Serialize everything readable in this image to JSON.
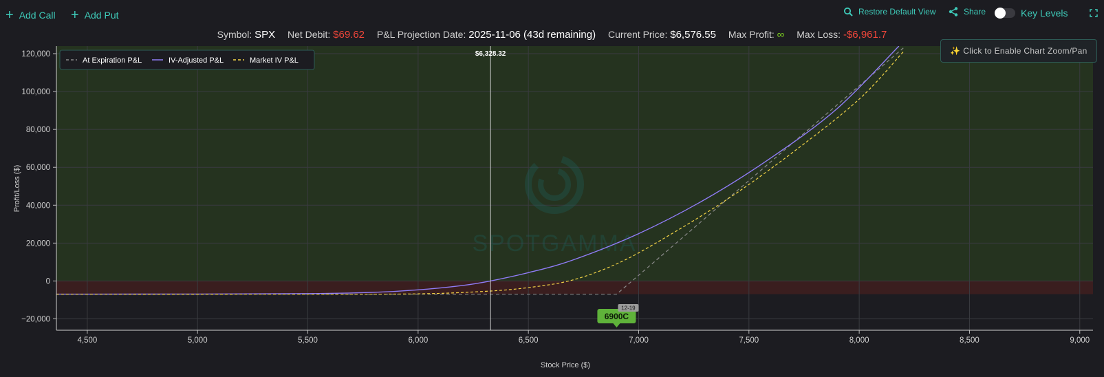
{
  "toolbar": {
    "add_call": "Add Call",
    "add_put": "Add Put",
    "restore": "Restore Default View",
    "share": "Share",
    "key_levels": "Key Levels"
  },
  "summary": {
    "symbol_label": "Symbol:",
    "symbol": "SPX",
    "net_debit_label": "Net Debit:",
    "net_debit": "$69.62",
    "proj_date_label": "P&L Projection Date:",
    "proj_date": "2025-11-06 (43d remaining)",
    "price_label": "Current Price:",
    "price": "$6,576.55",
    "max_profit_label": "Max Profit:",
    "max_profit": "∞",
    "max_loss_label": "Max Loss:",
    "max_loss": "-$6,961.7"
  },
  "zoom_hint": "✨ Click to Enable Chart Zoom/Pan",
  "watermark": "SPOTGAMMA",
  "colors": {
    "accent": "#3ec9b8",
    "profit_fill": "#25331f",
    "loss_fill": "#3a1e1f",
    "expiration": "#8a8a8a",
    "iv_adjusted": "#8f7cf6",
    "market_iv": "#f5d547",
    "strike_marker": "#5fb23a"
  },
  "chart_data": {
    "type": "line",
    "xlabel": "Stock Price ($)",
    "ylabel": "Profit/Loss ($)",
    "xlim": [
      4360,
      9060
    ],
    "ylim": [
      -26000,
      124000
    ],
    "xticks": [
      4500,
      5000,
      5500,
      6000,
      6500,
      7000,
      7500,
      8000,
      8500,
      9000
    ],
    "xtick_labels": [
      "4,500",
      "5,000",
      "5,500",
      "6,000",
      "6,500",
      "7,000",
      "7,500",
      "8,000",
      "8,500",
      "9,000"
    ],
    "yticks": [
      -20000,
      0,
      20000,
      40000,
      60000,
      80000,
      100000,
      120000
    ],
    "ytick_labels": [
      "−20,000",
      "0",
      "20,000",
      "40,000",
      "60,000",
      "80,000",
      "100,000",
      "120,000"
    ],
    "grid": true,
    "legend_position": "top-left",
    "breakeven": {
      "x": 6328.32,
      "label": "$6,328.32"
    },
    "strike_marker": {
      "x": 6900,
      "label": "6900C",
      "expiry": "12-19"
    },
    "series": [
      {
        "name": "At Expiration P&L",
        "style": "dashed",
        "color": "#8a8a8a",
        "x": [
          4360,
          6900,
          6970,
          8200
        ],
        "y": [
          -6962,
          -6962,
          0,
          123000
        ]
      },
      {
        "name": "IV-Adjusted P&L",
        "style": "solid",
        "color": "#8f7cf6",
        "x": [
          4360,
          5000,
          5500,
          5800,
          6000,
          6200,
          6328,
          6500,
          6700,
          7000,
          7300,
          7600,
          7900,
          8180
        ],
        "y": [
          -6960,
          -6900,
          -6700,
          -6000,
          -4700,
          -2400,
          0,
          4400,
          11000,
          25000,
          43000,
          65000,
          91000,
          124000
        ]
      },
      {
        "name": "Market IV P&L",
        "style": "dashed",
        "color": "#f5d547",
        "x": [
          4360,
          5500,
          6000,
          6300,
          6500,
          6700,
          6900,
          7100,
          7400,
          7700,
          8000,
          8200
        ],
        "y": [
          -6962,
          -6950,
          -6800,
          -5500,
          -3500,
          500,
          9000,
          21500,
          43000,
          68000,
          96000,
          121000
        ]
      }
    ]
  }
}
